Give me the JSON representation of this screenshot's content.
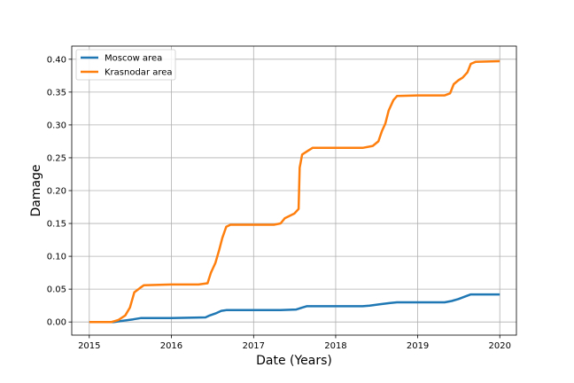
{
  "chart_data": {
    "type": "line",
    "title": "",
    "xlabel": "Date (Years)",
    "ylabel": "Damage",
    "xlim": [
      "2014-10-15",
      "2020-03-15"
    ],
    "ylim": [
      -0.02,
      0.42
    ],
    "x_ticks": [
      "2015-01-01",
      "2016-01-01",
      "2017-01-01",
      "2018-01-01",
      "2019-01-01",
      "2020-01-01"
    ],
    "x_tick_labels": [
      "2015",
      "2016",
      "2017",
      "2018",
      "2019",
      "2020"
    ],
    "y_ticks": [
      0.0,
      0.05,
      0.1,
      0.15,
      0.2,
      0.25,
      0.3,
      0.35,
      0.4
    ],
    "y_tick_labels": [
      "0.00",
      "0.05",
      "0.10",
      "0.15",
      "0.20",
      "0.25",
      "0.30",
      "0.35",
      "0.40"
    ],
    "grid": true,
    "legend_position": "top-left",
    "series": [
      {
        "name": "Moscow area",
        "color": "#1f77b4",
        "points": [
          [
            "2015-01-01",
            0.0
          ],
          [
            "2015-04-20",
            0.0
          ],
          [
            "2015-06-01",
            0.002
          ],
          [
            "2015-07-15",
            0.004
          ],
          [
            "2015-08-20",
            0.006
          ],
          [
            "2016-01-01",
            0.006
          ],
          [
            "2016-06-01",
            0.007
          ],
          [
            "2016-06-20",
            0.01
          ],
          [
            "2016-07-15",
            0.013
          ],
          [
            "2016-08-10",
            0.017
          ],
          [
            "2016-09-01",
            0.018
          ],
          [
            "2017-05-01",
            0.018
          ],
          [
            "2017-07-10",
            0.019
          ],
          [
            "2017-08-05",
            0.022
          ],
          [
            "2017-08-25",
            0.024
          ],
          [
            "2018-05-01",
            0.024
          ],
          [
            "2018-06-01",
            0.025
          ],
          [
            "2018-07-15",
            0.027
          ],
          [
            "2018-09-01",
            0.029
          ],
          [
            "2018-10-01",
            0.03
          ],
          [
            "2019-05-01",
            0.03
          ],
          [
            "2019-06-01",
            0.032
          ],
          [
            "2019-07-01",
            0.035
          ],
          [
            "2019-08-01",
            0.039
          ],
          [
            "2019-08-25",
            0.042
          ],
          [
            "2020-01-01",
            0.042
          ]
        ]
      },
      {
        "name": "Krasnodar area",
        "color": "#ff7f0e",
        "points": [
          [
            "2015-01-01",
            0.0
          ],
          [
            "2015-04-10",
            0.0
          ],
          [
            "2015-05-10",
            0.003
          ],
          [
            "2015-06-10",
            0.01
          ],
          [
            "2015-07-01",
            0.022
          ],
          [
            "2015-07-20",
            0.045
          ],
          [
            "2015-08-15",
            0.052
          ],
          [
            "2015-09-01",
            0.056
          ],
          [
            "2016-01-01",
            0.057
          ],
          [
            "2016-05-01",
            0.057
          ],
          [
            "2016-06-10",
            0.059
          ],
          [
            "2016-06-25",
            0.075
          ],
          [
            "2016-07-15",
            0.09
          ],
          [
            "2016-08-01",
            0.11
          ],
          [
            "2016-08-15",
            0.128
          ],
          [
            "2016-09-01",
            0.145
          ],
          [
            "2016-09-20",
            0.148
          ],
          [
            "2017-01-01",
            0.148
          ],
          [
            "2017-04-01",
            0.148
          ],
          [
            "2017-05-01",
            0.15
          ],
          [
            "2017-05-20",
            0.158
          ],
          [
            "2017-07-01",
            0.165
          ],
          [
            "2017-07-20",
            0.172
          ],
          [
            "2017-07-25",
            0.235
          ],
          [
            "2017-08-05",
            0.255
          ],
          [
            "2017-09-01",
            0.261
          ],
          [
            "2017-09-20",
            0.265
          ],
          [
            "2018-01-01",
            0.265
          ],
          [
            "2018-05-01",
            0.265
          ],
          [
            "2018-06-15",
            0.268
          ],
          [
            "2018-07-10",
            0.275
          ],
          [
            "2018-07-25",
            0.29
          ],
          [
            "2018-08-10",
            0.302
          ],
          [
            "2018-08-25",
            0.322
          ],
          [
            "2018-09-15",
            0.338
          ],
          [
            "2018-10-01",
            0.344
          ],
          [
            "2019-01-01",
            0.345
          ],
          [
            "2019-05-01",
            0.345
          ],
          [
            "2019-05-25",
            0.348
          ],
          [
            "2019-06-10",
            0.362
          ],
          [
            "2019-07-01",
            0.368
          ],
          [
            "2019-07-20",
            0.372
          ],
          [
            "2019-08-10",
            0.38
          ],
          [
            "2019-08-25",
            0.393
          ],
          [
            "2019-09-15",
            0.396
          ],
          [
            "2020-01-01",
            0.397
          ]
        ]
      }
    ]
  }
}
